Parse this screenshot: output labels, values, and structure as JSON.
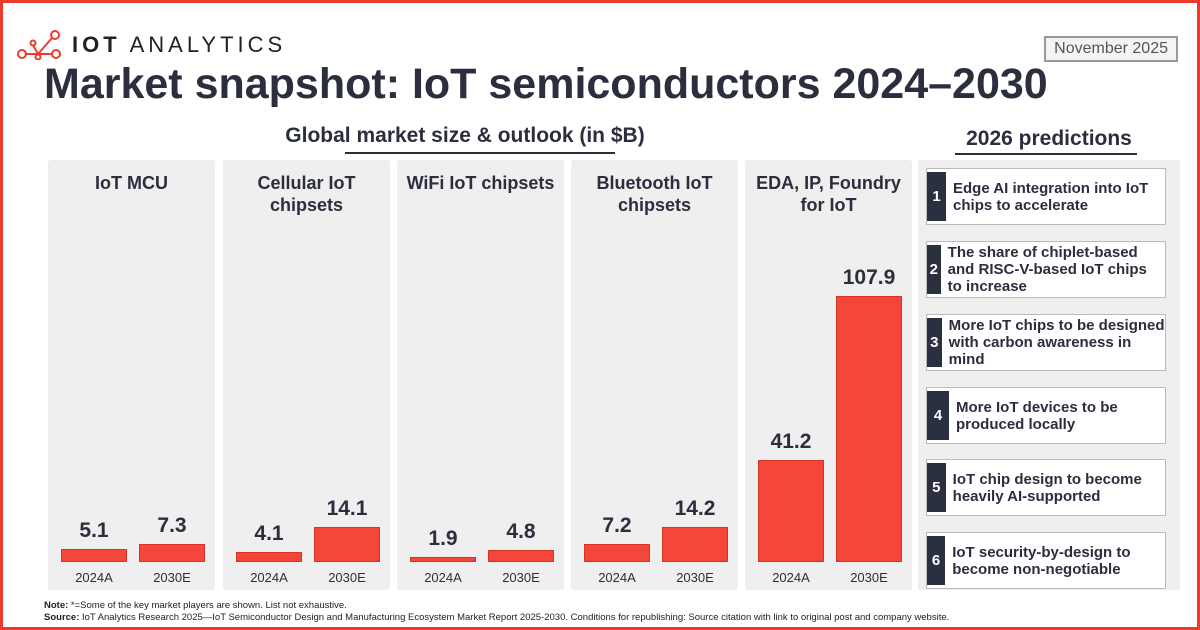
{
  "logo": {
    "brand_bold": "IOT",
    "brand_light": "ANALYTICS"
  },
  "date": "November 2025",
  "title": "Market snapshot: IoT semiconductors 2024–2030",
  "subtitle": "Global market size & outlook (in $B)",
  "predictions_title": "2026 predictions",
  "predictions": [
    {
      "num": "1",
      "text": "Edge AI integration into IoT chips to accelerate"
    },
    {
      "num": "2",
      "text": "The share of chiplet-based and RISC-V-based IoT chips to increase"
    },
    {
      "num": "3",
      "text": "More IoT chips to be designed with carbon awareness in mind"
    },
    {
      "num": "4",
      "text": "More IoT devices to be produced locally"
    },
    {
      "num": "5",
      "text": "IoT chip design to become heavily AI-supported"
    },
    {
      "num": "6",
      "text": "IoT security-by-design to become non-negotiable"
    }
  ],
  "chart_data": {
    "type": "bar",
    "title": "Global market size & outlook (in $B)",
    "categories": [
      "2024A",
      "2030E"
    ],
    "bar_color": "#f4463a",
    "panels": [
      {
        "name": "IoT MCU",
        "values": [
          5.1,
          7.3
        ]
      },
      {
        "name": "Cellular IoT chipsets",
        "values": [
          4.1,
          14.1
        ]
      },
      {
        "name": "WiFi IoT chipsets",
        "values": [
          1.9,
          4.8
        ]
      },
      {
        "name": "Bluetooth IoT chipsets",
        "values": [
          7.2,
          14.2
        ]
      },
      {
        "name": "EDA, IP, Foundry for IoT",
        "values": [
          41.2,
          107.9
        ]
      }
    ]
  },
  "note": {
    "label": "Note:",
    "text": " *=Some of the key market players are shown. List not exhaustive."
  },
  "source": {
    "label": "Source:",
    "text": " IoT Analytics Research 2025—IoT Semiconductor Design and Manufacturing Ecosystem Market Report 2025-2030. Conditions for republishing: Source citation with link to original post and company website."
  }
}
